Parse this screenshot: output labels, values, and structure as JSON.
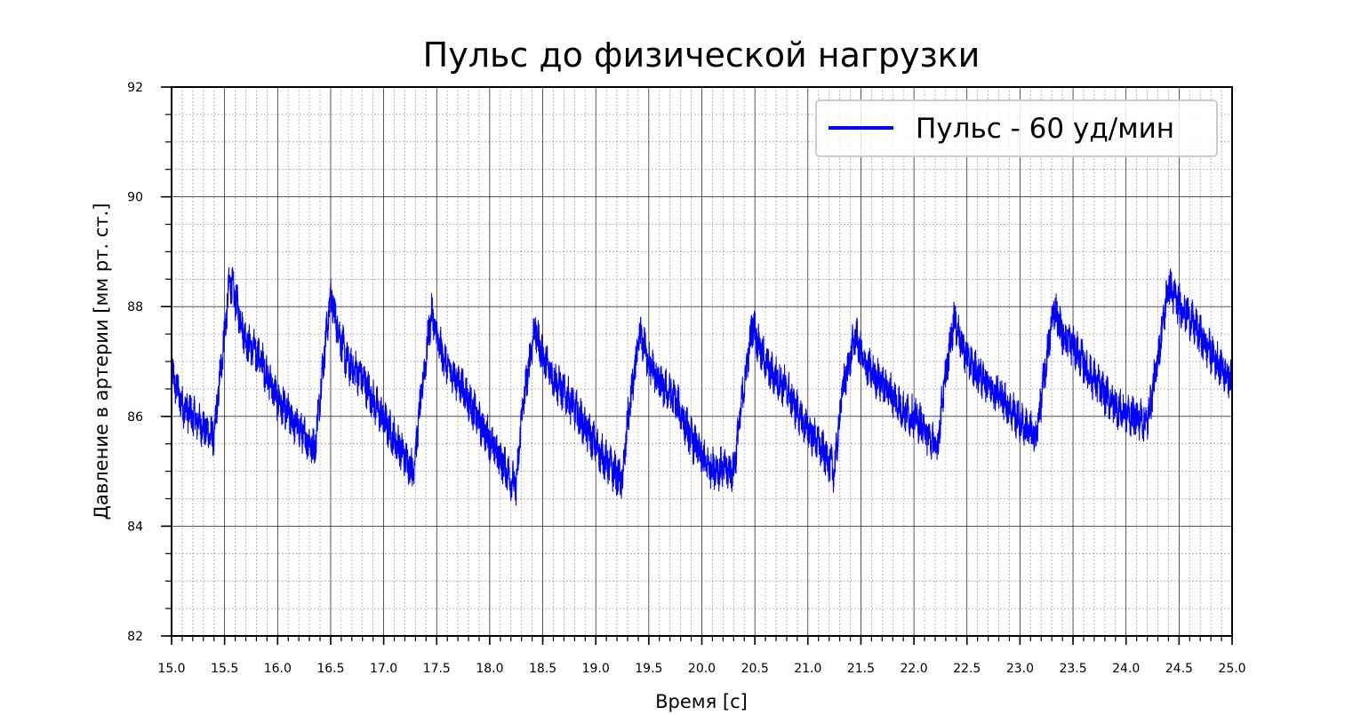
{
  "chart_data": {
    "type": "line",
    "title": "Пульс до физической нагрузки",
    "xlabel": "Время [с]",
    "ylabel": "Давление в артерии [мм рт. ст.]",
    "xlim": [
      15.0,
      25.0
    ],
    "ylim": [
      82,
      92
    ],
    "x_ticks": [
      "15.0",
      "15.5",
      "16.0",
      "16.5",
      "17.0",
      "17.5",
      "18.0",
      "18.5",
      "19.0",
      "19.5",
      "20.0",
      "20.5",
      "21.0",
      "21.5",
      "22.0",
      "22.5",
      "23.0",
      "23.5",
      "24.0",
      "24.5",
      "25.0"
    ],
    "y_ticks": [
      "82",
      "84",
      "86",
      "88",
      "90",
      "92"
    ],
    "grid": "major solid, minor dotted",
    "legend_position": "top-right",
    "series": [
      {
        "name": "Пульс - 60 уд/мин",
        "color": "#0000ff",
        "noise_band": 0.6,
        "x": [
          15.0,
          15.1,
          15.2,
          15.3,
          15.4,
          15.45,
          15.55,
          15.62,
          15.7,
          15.85,
          16.0,
          16.15,
          16.35,
          16.42,
          16.5,
          16.57,
          16.65,
          16.8,
          16.95,
          17.1,
          17.28,
          17.35,
          17.45,
          17.52,
          17.6,
          17.75,
          17.9,
          18.05,
          18.25,
          18.3,
          18.42,
          18.5,
          18.6,
          18.75,
          18.9,
          19.05,
          19.25,
          19.3,
          19.42,
          19.5,
          19.6,
          19.75,
          19.9,
          20.05,
          20.3,
          20.38,
          20.48,
          20.55,
          20.65,
          20.8,
          20.95,
          21.1,
          21.25,
          21.32,
          21.45,
          21.52,
          21.6,
          21.75,
          21.9,
          22.05,
          22.22,
          22.28,
          22.38,
          22.45,
          22.55,
          22.7,
          22.85,
          23.0,
          23.15,
          23.22,
          23.32,
          23.4,
          23.5,
          23.65,
          23.8,
          23.95,
          24.2,
          24.28,
          24.4,
          24.48,
          24.6,
          24.75,
          24.9,
          25.0
        ],
        "y": [
          86.8,
          86.2,
          86.0,
          85.8,
          85.6,
          86.6,
          88.5,
          88.0,
          87.4,
          87.0,
          86.3,
          85.9,
          85.4,
          86.8,
          88.2,
          87.6,
          87.0,
          86.7,
          86.1,
          85.6,
          85.0,
          86.3,
          87.9,
          87.3,
          86.9,
          86.5,
          85.9,
          85.4,
          84.7,
          86.0,
          87.6,
          87.1,
          86.7,
          86.3,
          85.8,
          85.3,
          84.8,
          85.9,
          87.5,
          87.0,
          86.6,
          86.3,
          85.6,
          85.1,
          85.0,
          86.3,
          87.7,
          87.2,
          86.8,
          86.5,
          85.9,
          85.5,
          85.0,
          86.4,
          87.5,
          87.0,
          86.8,
          86.5,
          86.1,
          85.9,
          85.4,
          86.5,
          87.8,
          87.3,
          86.9,
          86.6,
          86.3,
          85.9,
          85.6,
          86.6,
          88.0,
          87.5,
          87.3,
          86.8,
          86.4,
          86.1,
          85.9,
          86.8,
          88.4,
          88.1,
          87.8,
          87.3,
          86.9,
          86.6
        ]
      }
    ]
  }
}
